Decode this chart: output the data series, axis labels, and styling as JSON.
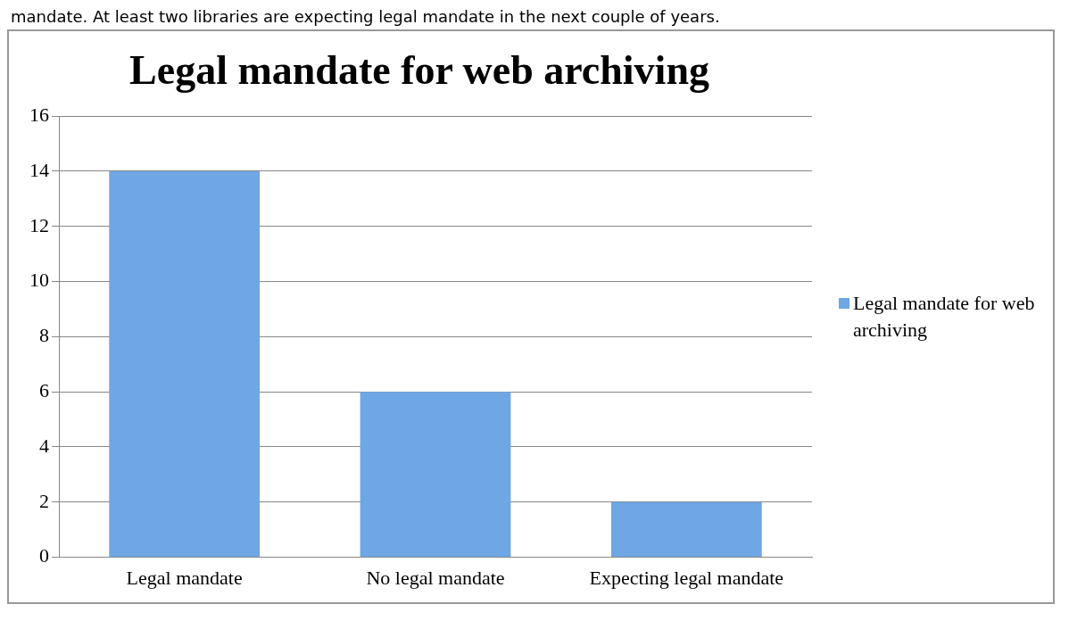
{
  "chart_data": {
    "type": "bar",
    "title": "Legal mandate for web archiving",
    "annotations": [
      "mandate. At least two libraries are expecting legal mandate in the next couple of years."
    ],
    "categories": [
      "Legal mandate",
      "No legal mandate",
      "Expecting legal mandate"
    ],
    "series": [
      {
        "name": "Legal mandate for web archiving",
        "color": "#6fa6e4",
        "values": [
          14,
          6,
          2
        ]
      }
    ],
    "ylim": [
      0,
      16
    ],
    "yticks": [
      0,
      2,
      4,
      6,
      8,
      10,
      12,
      14,
      16
    ],
    "grid": "y",
    "legend": "right"
  }
}
